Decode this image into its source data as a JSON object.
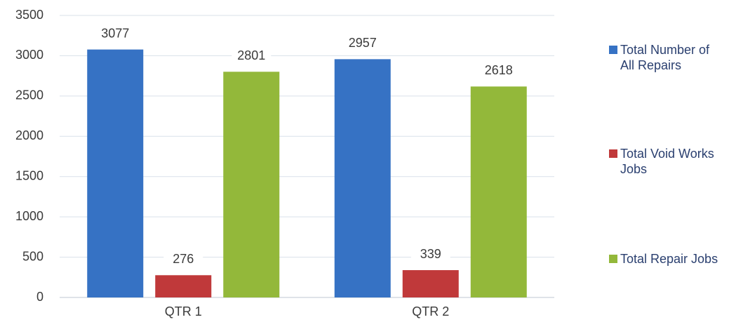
{
  "chart_data": {
    "type": "bar",
    "categories": [
      "QTR 1",
      "QTR 2"
    ],
    "series": [
      {
        "name": "Total Number of All Repairs",
        "color": "#3672c4",
        "values": [
          3077,
          2957
        ]
      },
      {
        "name": "Total Void Works Jobs",
        "color": "#c0393a",
        "values": [
          276,
          339
        ]
      },
      {
        "name": "Total Repair Jobs",
        "color": "#93b83a",
        "values": [
          2801,
          2618
        ]
      }
    ],
    "ylim": [
      0,
      3500
    ],
    "yticks": [
      0,
      500,
      1000,
      1500,
      2000,
      2500,
      3000,
      3500
    ],
    "grid": true,
    "legend": "right"
  }
}
